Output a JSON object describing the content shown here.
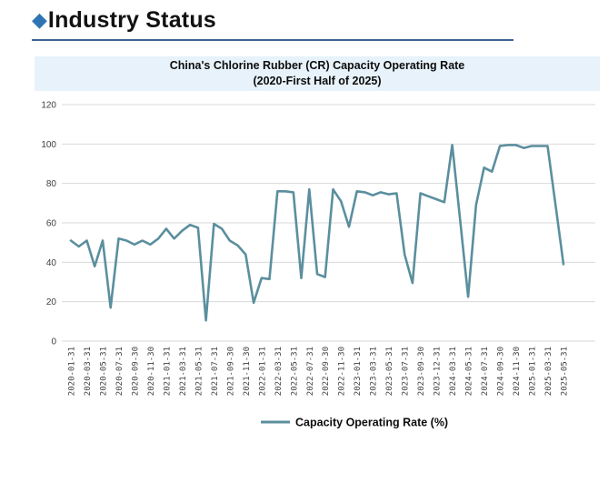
{
  "header": {
    "diamond": "◆",
    "title": "Industry Status",
    "diamond_color": "#2e74b5",
    "underline_color": "#3a6494"
  },
  "chart": {
    "title_line1": "China's Chlorine Rubber (CR) Capacity Operating Rate",
    "title_line2": "(2020-First Half of 2025)",
    "banner_bg": "#e7f2fa"
  },
  "chart_data": {
    "type": "line",
    "title": "China's Chlorine Rubber (CR) Capacity Operating Rate (2020-First Half of 2025)",
    "legend": [
      "Capacity Operating Rate (%)"
    ],
    "legend_position": "bottom",
    "line_color": "#5b8f9e",
    "grid": true,
    "grid_color": "#d9d9d9",
    "axis_text_color": "#404040",
    "ylim": [
      0,
      120
    ],
    "yticks": [
      0,
      20,
      40,
      60,
      80,
      100,
      120
    ],
    "x": [
      "2020-01-31",
      "2020-02-29",
      "2020-03-31",
      "2020-04-30",
      "2020-05-31",
      "2020-06-30",
      "2020-07-31",
      "2020-08-31",
      "2020-09-30",
      "2020-10-31",
      "2020-11-30",
      "2020-12-31",
      "2021-01-31",
      "2021-02-28",
      "2021-03-31",
      "2021-04-30",
      "2021-05-31",
      "2021-06-30",
      "2021-07-31",
      "2021-08-31",
      "2021-09-30",
      "2021-10-31",
      "2021-11-30",
      "2021-12-31",
      "2022-01-31",
      "2022-02-28",
      "2022-03-31",
      "2022-04-30",
      "2022-05-31",
      "2022-06-30",
      "2022-07-31",
      "2022-08-31",
      "2022-09-30",
      "2022-10-31",
      "2022-11-30",
      "2022-12-31",
      "2023-01-31",
      "2023-02-28",
      "2023-03-31",
      "2023-04-30",
      "2023-05-31",
      "2023-06-30",
      "2023-07-31",
      "2023-08-31",
      "2023-09-30",
      "2023-10-31",
      "2023-12-31",
      "2024-01-31",
      "2024-03-31",
      "2024-04-30",
      "2024-05-31",
      "2024-06-30",
      "2024-07-31",
      "2024-08-31",
      "2024-09-30",
      "2024-10-31",
      "2024-11-30",
      "2024-12-31",
      "2025-01-31",
      "2025-02-28",
      "2025-03-31",
      "2025-04-30",
      "2025-05-31"
    ],
    "x_tick_labels": [
      "2020-01-31",
      "2020-03-31",
      "2020-05-31",
      "2020-07-31",
      "2020-09-30",
      "2020-11-30",
      "2021-01-31",
      "2021-03-31",
      "2021-05-31",
      "2021-07-31",
      "2021-09-30",
      "2021-11-30",
      "2022-01-31",
      "2022-03-31",
      "2022-05-31",
      "2022-07-31",
      "2022-09-30",
      "2022-11-30",
      "2023-01-31",
      "2023-03-31",
      "2023-05-31",
      "2023-07-31",
      "2023-09-30",
      "2023-12-31",
      "2024-03-31",
      "2024-05-31",
      "2024-07-31",
      "2024-09-30",
      "2024-11-30",
      "2025-01-31",
      "2025-03-31",
      "2025-05-31"
    ],
    "series": [
      {
        "name": "Capacity Operating Rate (%)",
        "values": [
          51,
          48,
          51,
          38,
          51,
          17,
          52,
          51,
          49,
          51,
          49,
          52,
          57,
          52,
          56,
          59,
          57.5,
          10.5,
          59.5,
          57,
          51,
          48.5,
          44,
          19.5,
          32,
          31.5,
          76,
          76,
          75.5,
          32,
          77,
          34,
          32.5,
          77,
          71,
          58,
          76,
          75.5,
          74,
          75.5,
          74.5,
          75,
          44,
          29.5,
          75,
          73.5,
          72,
          70.5,
          99.5,
          61,
          22.5,
          69,
          88,
          86,
          99,
          99.5,
          99.5,
          98,
          99,
          99,
          99,
          69,
          39
        ]
      }
    ]
  }
}
